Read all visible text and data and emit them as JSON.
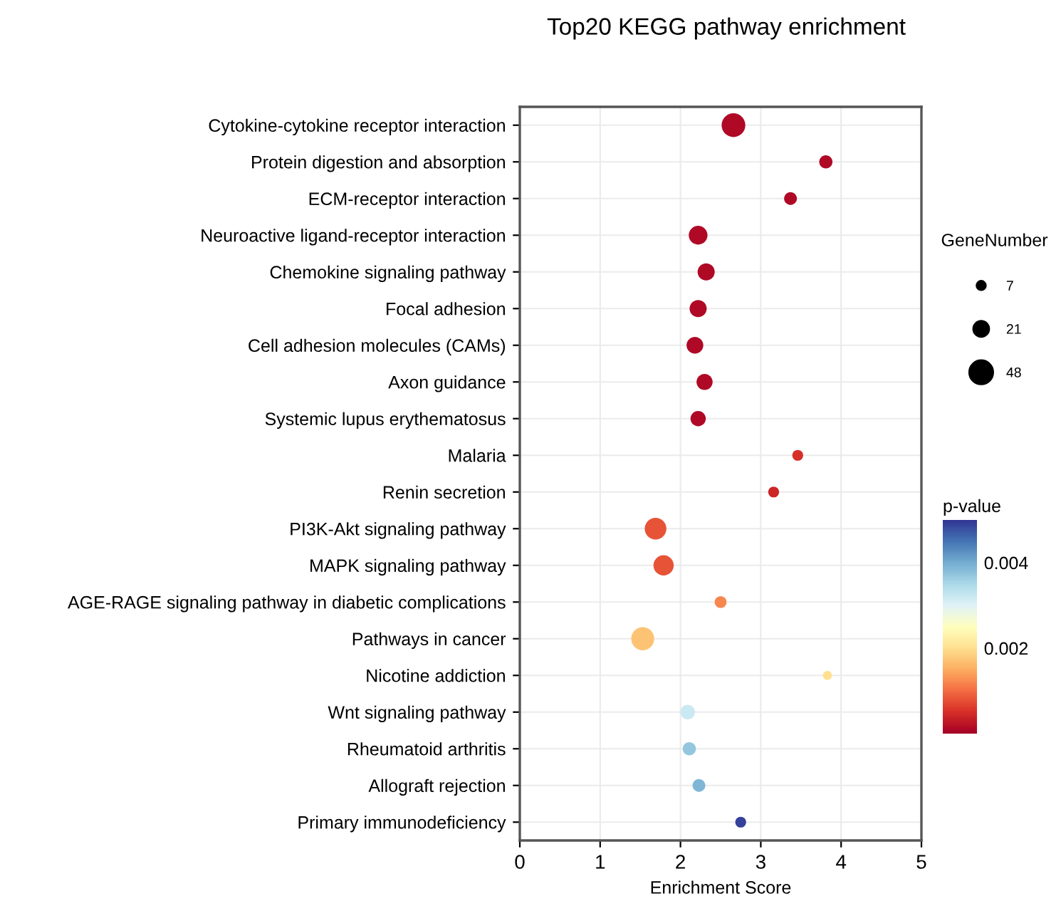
{
  "chart_data": {
    "type": "bubble",
    "title": "Top20 KEGG pathway enrichment",
    "xlabel": "Enrichment Score",
    "orientation": "horizontal",
    "categories": [
      "Cytokine-cytokine receptor interaction",
      "Protein digestion and absorption",
      "ECM-receptor interaction",
      "Neuroactive ligand-receptor interaction",
      "Chemokine signaling pathway",
      "Focal adhesion",
      "Cell adhesion molecules (CAMs)",
      "Axon guidance",
      "Systemic lupus erythematosus",
      "Malaria",
      "Renin secretion",
      "PI3K-Akt signaling pathway",
      "MAPK signaling pathway",
      "AGE-RAGE signaling pathway in diabetic complications",
      "Pathways in cancer",
      "Nicotine addiction",
      "Wnt signaling pathway",
      "Rheumatoid arthritis",
      "Allograft rejection",
      "Primary immunodeficiency"
    ],
    "values": [
      2.66,
      3.81,
      3.37,
      2.22,
      2.32,
      2.22,
      2.18,
      2.3,
      2.22,
      3.46,
      3.16,
      1.69,
      1.79,
      2.5,
      1.53,
      3.83,
      2.09,
      2.11,
      2.23,
      2.75
    ],
    "sizes": [
      48,
      15,
      14,
      30,
      25,
      25,
      24,
      22,
      20,
      10,
      10,
      40,
      35,
      12,
      45,
      7,
      18,
      15,
      14,
      10
    ],
    "size_legend": [
      7,
      21,
      48
    ],
    "legend_title": "GeneNumber",
    "cvalues": [
      0.0001,
      0.0001,
      0.0001,
      0.0001,
      0.0001,
      0.0001,
      0.0001,
      0.0001,
      0.0001,
      0.0005,
      0.0004,
      0.0008,
      0.0008,
      0.0012,
      0.0017,
      0.002,
      0.0032,
      0.0037,
      0.0039,
      0.0049
    ],
    "clim": [
      0,
      0.005
    ],
    "cticks": [
      0.002,
      0.004
    ],
    "clabel": "p-value",
    "xlim": [
      0,
      5
    ],
    "xticks": [
      0,
      1,
      2,
      3,
      4,
      5
    ],
    "grid": true
  }
}
